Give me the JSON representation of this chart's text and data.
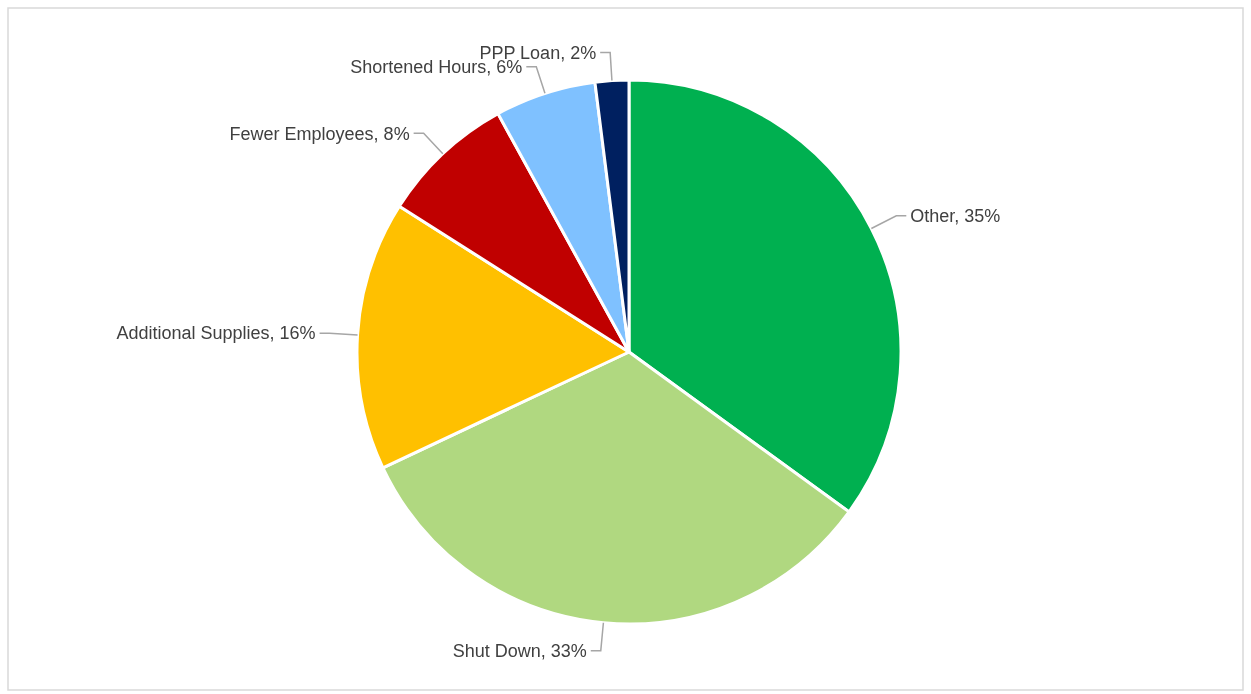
{
  "chart_data": {
    "type": "pie",
    "categories": [
      "Other",
      "Shut Down",
      "Additional Supplies",
      "Fewer Employees",
      "Shortened Hours",
      "PPP Loan"
    ],
    "values": [
      35,
      33,
      16,
      8,
      6,
      2
    ],
    "value_labels": [
      "35%",
      "33%",
      "16%",
      "8%",
      "6%",
      "2%"
    ],
    "colors": [
      "#00b050",
      "#b0d880",
      "#ffc000",
      "#c00000",
      "#7fc1ff",
      "#002060"
    ]
  }
}
